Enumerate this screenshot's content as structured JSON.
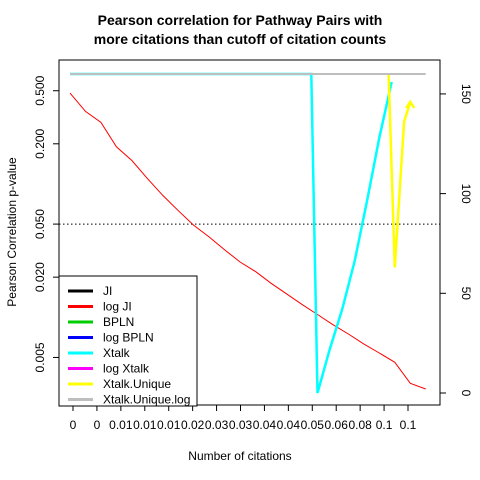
{
  "chart_data": {
    "type": "line",
    "title_lines": [
      "Pearson correlation for Pathway Pairs with",
      "more citations than cutoff of citation counts"
    ],
    "xlabel": "Number of citations",
    "ylabel": "Pearson Correlation p-value",
    "x_tick_labels": [
      "0",
      "0",
      "0.01",
      "0.01",
      "0.01",
      "0.02",
      "0.03",
      "0.03",
      "0.04",
      "0.04",
      "0.05",
      "0.06",
      "0.08",
      "0.1",
      "0.1"
    ],
    "left_axis": {
      "scale": "log",
      "range": [
        0.0022,
        0.85
      ],
      "ticks": [
        0.005,
        0.02,
        0.05,
        0.2,
        0.5
      ],
      "tick_labels": [
        "0.005",
        "0.020",
        "0.050",
        "0.200",
        "0.500"
      ]
    },
    "right_axis": {
      "range": [
        0,
        163
      ],
      "ticks": [
        0,
        50,
        100,
        150
      ],
      "tick_labels": [
        "0",
        "50",
        "100",
        "150"
      ]
    },
    "reference_line": {
      "p_value": 0.05,
      "style": "dotted"
    },
    "legend": {
      "position": "bottom-left",
      "entries": [
        {
          "label": "JI",
          "color": "#000000"
        },
        {
          "label": "log JI",
          "color": "#ff0000"
        },
        {
          "label": "BPLN",
          "color": "#00cd00"
        },
        {
          "label": "log BPLN",
          "color": "#0000ff"
        },
        {
          "label": "Xtalk",
          "color": "#00ffff"
        },
        {
          "label": "log Xtalk",
          "color": "#ff00ff"
        },
        {
          "label": "Xtalk.Unique",
          "color": "#ffff00"
        },
        {
          "label": "Xtalk.Unique.log",
          "color": "#bebebe"
        }
      ]
    },
    "series": [
      {
        "name": "log JI",
        "color": "#ff0000",
        "axis": "left",
        "x": [
          0.0,
          0.005,
          0.01,
          0.015,
          0.02,
          0.025,
          0.03,
          0.035,
          0.04,
          0.045,
          0.05,
          0.055,
          0.06,
          0.065,
          0.07,
          0.075,
          0.08,
          0.085,
          0.09,
          0.095,
          0.1,
          0.105,
          0.11,
          0.115
        ],
        "y": [
          0.48,
          0.35,
          0.29,
          0.19,
          0.15,
          0.11,
          0.082,
          0.063,
          0.049,
          0.04,
          0.032,
          0.026,
          0.022,
          0.018,
          0.015,
          0.0125,
          0.0105,
          0.0088,
          0.0075,
          0.0063,
          0.0054,
          0.0046,
          0.0032,
          0.0029
        ]
      },
      {
        "name": "Xtalk",
        "color": "#00ffff",
        "axis": "right",
        "x": [
          0.0,
          0.02,
          0.04,
          0.06,
          0.078,
          0.08,
          0.084,
          0.088,
          0.092,
          0.096,
          0.1,
          0.104
        ],
        "y": [
          160,
          160,
          160,
          160,
          160,
          0,
          22,
          42,
          66,
          96,
          128,
          156
        ]
      },
      {
        "name": "Xtalk.Unique",
        "color": "#ffff00",
        "axis": "right",
        "x": [
          0.103,
          0.105,
          0.108,
          0.11
        ],
        "y": [
          160,
          63,
          136,
          146
        ]
      },
      {
        "name": "Xtalk.Unique.log",
        "color": "#bebebe",
        "axis": "right",
        "x": [
          0.0,
          0.115
        ],
        "y": [
          160,
          160
        ]
      }
    ]
  }
}
